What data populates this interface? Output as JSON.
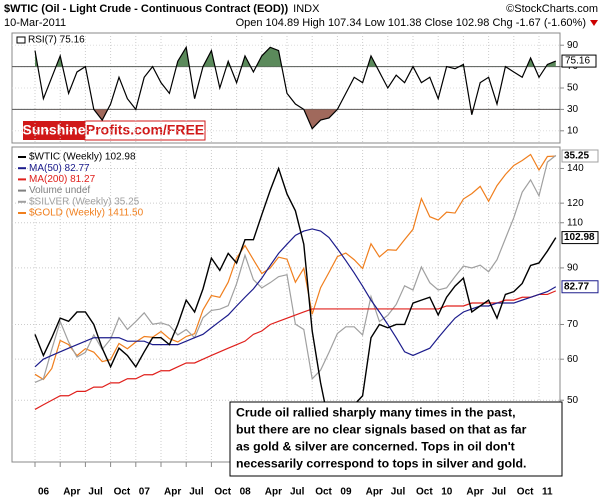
{
  "header": {
    "title": "$WTIC (Oil - Light Crude - Continuous Contract (EOD))",
    "exchange": "INDX",
    "source": "©StockCharts.com",
    "date": "10-Mar-2011",
    "quote": "Open 104.89 High 107.34 Low 101.38 Close 102.98 Chg -1.67 (-1.60%)"
  },
  "watermark": [
    "Sunshine",
    "Profits.com/FREE"
  ],
  "annotation": [
    "Crude oil rallied sharply many times in the past,",
    "but there are no clear signals based on that as far",
    "as gold & silver are concerned. Tops in oil don't",
    "necessarily correspond to tops in silver and gold."
  ],
  "chart_data": [
    {
      "type": "line",
      "title": "RSI(7) 75.16",
      "color": "#000000",
      "overbought": 70,
      "oversold": 30,
      "overbought_color": "#5b8a5b",
      "oversold_color": "#a0695c",
      "ylim": [
        0,
        100
      ],
      "yticks": [
        10,
        30,
        50,
        70,
        90
      ],
      "values": [
        85,
        40,
        60,
        80,
        45,
        65,
        70,
        30,
        20,
        35,
        60,
        40,
        30,
        60,
        70,
        55,
        45,
        75,
        88,
        40,
        70,
        85,
        50,
        75,
        55,
        80,
        65,
        80,
        88,
        85,
        45,
        35,
        30,
        12,
        20,
        22,
        30,
        45,
        60,
        55,
        80,
        65,
        50,
        62,
        55,
        70,
        55,
        60,
        40,
        70,
        68,
        72,
        25,
        55,
        60,
        35,
        70,
        65,
        60,
        78,
        60,
        72,
        75.16
      ]
    },
    {
      "type": "line",
      "log_scale": true,
      "grid": true,
      "legend": "top-left",
      "ylim": [
        38,
        154
      ],
      "yticks": [
        50,
        60,
        70,
        90,
        110,
        120,
        140
      ],
      "categories": [
        "06",
        null,
        null,
        "Apr",
        null,
        null,
        "Jul",
        null,
        null,
        "Oct",
        null,
        null,
        "07",
        null,
        null,
        "Apr",
        null,
        null,
        "Jul",
        null,
        null,
        "Oct",
        null,
        null,
        "08",
        null,
        null,
        "Apr",
        null,
        null,
        "Jul",
        null,
        null,
        "Oct",
        null,
        null,
        "09",
        null,
        null,
        "Apr",
        null,
        null,
        "Jul",
        null,
        null,
        "Oct",
        null,
        null,
        "10",
        null,
        null,
        "Apr",
        null,
        null,
        "Jul",
        null,
        null,
        "Oct",
        null,
        null,
        "11",
        null,
        null
      ],
      "series": [
        {
          "name": "$WTIC (Weekly) 102.98",
          "color": "#000000",
          "tag": true,
          "values": [
            67,
            61,
            66,
            72,
            71,
            74,
            74,
            70,
            63,
            58,
            63,
            61,
            58,
            62,
            66,
            66,
            64,
            70,
            78,
            74,
            82,
            94,
            89,
            96,
            92,
            102,
            102,
            114,
            127,
            140,
            125,
            116,
            100,
            68,
            54,
            45,
            42,
            45,
            49,
            51,
            66,
            70,
            69,
            70,
            70,
            77,
            78,
            79,
            73,
            79,
            83,
            86,
            74,
            76,
            78,
            72,
            80,
            81,
            84,
            91,
            92,
            97,
            102.98
          ]
        },
        {
          "name": "MA(50) 82.77",
          "color": "#1c1c8c",
          "tag": true,
          "values": [
            58,
            60,
            61,
            62,
            63,
            64,
            65,
            66,
            66,
            66,
            66,
            65,
            65,
            65,
            64,
            64,
            64,
            64,
            65,
            66,
            67,
            69,
            71,
            73,
            76,
            79,
            82,
            86,
            91,
            96,
            100,
            104,
            106,
            107,
            106,
            103,
            98,
            93,
            88,
            83,
            78,
            74,
            70,
            66,
            62,
            61,
            62,
            63,
            66,
            69,
            72,
            74,
            75,
            76,
            76,
            77,
            77,
            77,
            78,
            79,
            80,
            81,
            82.77
          ]
        },
        {
          "name": "MA(200) 81.27",
          "color": "#e0201c",
          "values": [
            48,
            49,
            50,
            51,
            51,
            52,
            52,
            53,
            53,
            54,
            54,
            55,
            55,
            56,
            56,
            57,
            57,
            58,
            59,
            59,
            60,
            61,
            62,
            63,
            64,
            65,
            67,
            68,
            70,
            71,
            72,
            73,
            74,
            75,
            75,
            75,
            75,
            75,
            75,
            75,
            75,
            75,
            75,
            75,
            75,
            75,
            75,
            75,
            75,
            76,
            76,
            76,
            77,
            77,
            77,
            77,
            78,
            78,
            79,
            79,
            80,
            80,
            81.27
          ]
        },
        {
          "name": "$SILVER (Weekly) 35.25",
          "color": "#a0a0a0",
          "tag": true,
          "scale_lim": [
            6,
            37
          ],
          "values": [
            9.5,
            9.7,
            11.5,
            13.5,
            12,
            11,
            11.3,
            12.5,
            11.5,
            12.2,
            13.8,
            12.9,
            13.5,
            14.2,
            13.3,
            13.4,
            13.2,
            12.5,
            12.9,
            12.3,
            13.8,
            14.4,
            14.5,
            14.8,
            16.8,
            19.8,
            17.2,
            16.4,
            16.9,
            17.5,
            17.7,
            13.3,
            12.9,
            9.7,
            10.2,
            11.3,
            12.6,
            13.1,
            13.1,
            12.5,
            15.6,
            13.5,
            14,
            14.9,
            16.6,
            16.2,
            18.5,
            16.9,
            16.2,
            16.4,
            17.5,
            18.6,
            18.4,
            18.7,
            18,
            19.3,
            21.8,
            24.6,
            28.5,
            30.6,
            27.9,
            33.9,
            35.25
          ]
        },
        {
          "name": "$GOLD (Weekly) 1411.50",
          "color": "#f07f1e",
          "scale_lim": [
            394,
            1466
          ],
          "values": [
            568,
            556,
            582,
            654,
            643,
            614,
            632,
            623,
            599,
            604,
            646,
            632,
            650,
            665,
            663,
            679,
            659,
            650,
            665,
            673,
            743,
            789,
            783,
            834,
            923,
            972,
            916,
            865,
            885,
            926,
            918,
            834,
            884,
            730,
            815,
            869,
            928,
            942,
            916,
            883,
            979,
            927,
            955,
            953,
            996,
            1040,
            1182,
            1096,
            1081,
            1117,
            1113,
            1180,
            1207,
            1244,
            1169,
            1248,
            1307,
            1357,
            1386,
            1421,
            1332,
            1409,
            1411.5
          ]
        }
      ],
      "legend_notes": [
        {
          "name": "Volume undef",
          "color": "#808080"
        }
      ]
    }
  ]
}
